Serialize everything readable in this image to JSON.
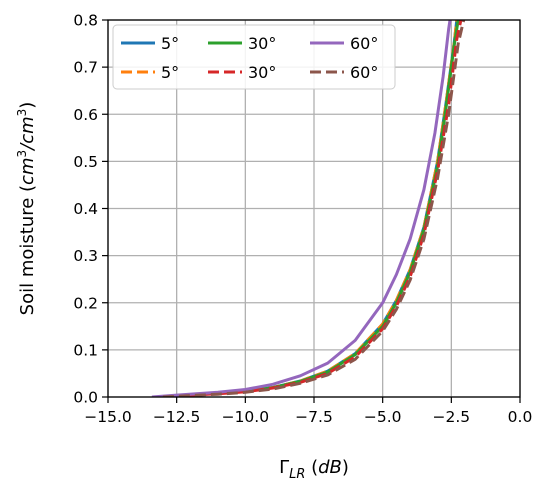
{
  "chart_data": {
    "type": "line",
    "xlabel": "Γ_LR (dB)",
    "ylabel": "Soil moisture (cm³/cm³)",
    "xlim": [
      -15.0,
      0.0
    ],
    "ylim": [
      0.0,
      0.8
    ],
    "xticks": [
      "−15.0",
      "−12.5",
      "−10.0",
      "−7.5",
      "−5.0",
      "−2.5",
      "0.0"
    ],
    "yticks": [
      "0.0",
      "0.1",
      "0.2",
      "0.3",
      "0.4",
      "0.5",
      "0.6",
      "0.7",
      "0.8"
    ],
    "grid": true,
    "legend": {
      "placement": "top-left",
      "columns": 3
    },
    "series": [
      {
        "name": "5°",
        "style": "solid",
        "color": "#1f77b4",
        "points": [
          [
            -13.2,
            0.0
          ],
          [
            -12.0,
            0.004
          ],
          [
            -11.0,
            0.008
          ],
          [
            -10.0,
            0.012
          ],
          [
            -9.0,
            0.02
          ],
          [
            -8.0,
            0.034
          ],
          [
            -7.0,
            0.055
          ],
          [
            -6.0,
            0.092
          ],
          [
            -5.0,
            0.155
          ],
          [
            -4.5,
            0.205
          ],
          [
            -4.0,
            0.27
          ],
          [
            -3.5,
            0.36
          ],
          [
            -3.0,
            0.5
          ],
          [
            -2.7,
            0.62
          ],
          [
            -2.4,
            0.75
          ],
          [
            -2.3,
            0.8
          ]
        ]
      },
      {
        "name": "5°",
        "style": "dashed",
        "color": "#ff7f0e",
        "points": [
          [
            -13.2,
            0.0
          ],
          [
            -12.0,
            0.004
          ],
          [
            -11.0,
            0.008
          ],
          [
            -10.0,
            0.012
          ],
          [
            -9.0,
            0.02
          ],
          [
            -8.0,
            0.034
          ],
          [
            -7.0,
            0.055
          ],
          [
            -6.0,
            0.092
          ],
          [
            -5.0,
            0.155
          ],
          [
            -4.5,
            0.205
          ],
          [
            -4.0,
            0.27
          ],
          [
            -3.5,
            0.36
          ],
          [
            -3.0,
            0.5
          ],
          [
            -2.7,
            0.62
          ],
          [
            -2.4,
            0.75
          ],
          [
            -2.3,
            0.8
          ]
        ]
      },
      {
        "name": "30°",
        "style": "solid",
        "color": "#2ca02c",
        "points": [
          [
            -13.2,
            0.0
          ],
          [
            -12.0,
            0.004
          ],
          [
            -11.0,
            0.008
          ],
          [
            -10.0,
            0.012
          ],
          [
            -9.0,
            0.02
          ],
          [
            -8.0,
            0.033
          ],
          [
            -7.0,
            0.053
          ],
          [
            -6.0,
            0.09
          ],
          [
            -5.0,
            0.15
          ],
          [
            -4.5,
            0.2
          ],
          [
            -4.0,
            0.265
          ],
          [
            -3.5,
            0.355
          ],
          [
            -3.0,
            0.49
          ],
          [
            -2.7,
            0.61
          ],
          [
            -2.4,
            0.745
          ],
          [
            -2.25,
            0.8
          ]
        ]
      },
      {
        "name": "30°",
        "style": "dashed",
        "color": "#d62728",
        "points": [
          [
            -13.2,
            0.0
          ],
          [
            -12.0,
            0.004
          ],
          [
            -11.0,
            0.007
          ],
          [
            -10.0,
            0.011
          ],
          [
            -9.0,
            0.019
          ],
          [
            -8.0,
            0.031
          ],
          [
            -7.0,
            0.05
          ],
          [
            -6.0,
            0.085
          ],
          [
            -5.0,
            0.145
          ],
          [
            -4.5,
            0.193
          ],
          [
            -4.0,
            0.255
          ],
          [
            -3.5,
            0.345
          ],
          [
            -3.0,
            0.48
          ],
          [
            -2.6,
            0.62
          ],
          [
            -2.3,
            0.76
          ],
          [
            -2.15,
            0.8
          ]
        ]
      },
      {
        "name": "60°",
        "style": "solid",
        "color": "#9467bd",
        "points": [
          [
            -13.4,
            0.0
          ],
          [
            -12.5,
            0.004
          ],
          [
            -11.0,
            0.01
          ],
          [
            -10.0,
            0.016
          ],
          [
            -9.0,
            0.027
          ],
          [
            -8.0,
            0.045
          ],
          [
            -7.0,
            0.072
          ],
          [
            -6.0,
            0.12
          ],
          [
            -5.0,
            0.2
          ],
          [
            -4.5,
            0.26
          ],
          [
            -4.0,
            0.335
          ],
          [
            -3.5,
            0.44
          ],
          [
            -3.1,
            0.56
          ],
          [
            -2.8,
            0.68
          ],
          [
            -2.6,
            0.78
          ],
          [
            -2.55,
            0.8
          ]
        ]
      },
      {
        "name": "60°",
        "style": "dashed",
        "color": "#8c564b",
        "points": [
          [
            -13.0,
            0.0
          ],
          [
            -12.0,
            0.003
          ],
          [
            -11.0,
            0.006
          ],
          [
            -10.0,
            0.01
          ],
          [
            -9.0,
            0.017
          ],
          [
            -8.0,
            0.029
          ],
          [
            -7.0,
            0.047
          ],
          [
            -6.0,
            0.08
          ],
          [
            -5.0,
            0.14
          ],
          [
            -4.5,
            0.186
          ],
          [
            -4.0,
            0.248
          ],
          [
            -3.5,
            0.335
          ],
          [
            -3.0,
            0.465
          ],
          [
            -2.6,
            0.6
          ],
          [
            -2.25,
            0.75
          ],
          [
            -2.05,
            0.8
          ]
        ]
      }
    ]
  }
}
